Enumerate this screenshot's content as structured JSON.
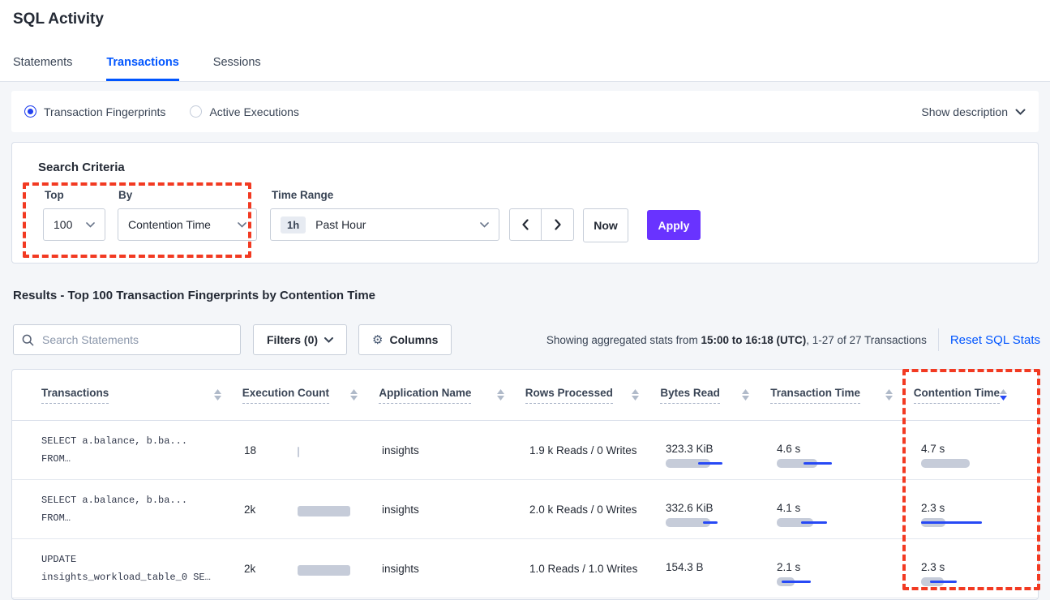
{
  "page": {
    "title": "SQL Activity",
    "show_description": "Show description"
  },
  "tabs": [
    {
      "label": "Statements"
    },
    {
      "label": "Transactions"
    },
    {
      "label": "Sessions"
    }
  ],
  "view_options": [
    {
      "label": "Transaction Fingerprints"
    },
    {
      "label": "Active Executions"
    }
  ],
  "search_criteria": {
    "heading": "Search Criteria",
    "top_label": "Top",
    "top_value": "100",
    "by_label": "By",
    "by_value": "Contention Time",
    "time_range_label": "Time Range",
    "time_range_badge": "1h",
    "time_range_value": "Past Hour",
    "now_label": "Now",
    "apply_label": "Apply"
  },
  "results": {
    "heading": "Results - Top 100 Transaction Fingerprints by Contention Time",
    "search_placeholder": "Search Statements",
    "filters_label": "Filters (0)",
    "columns_label": "Columns",
    "stats_prefix": "Showing aggregated stats from ",
    "stats_bold": "15:00 to 16:18 (UTC)",
    "stats_suffix": ", 1-27 of 27 Transactions",
    "reset_label": "Reset SQL Stats"
  },
  "table": {
    "columns": [
      "Transactions",
      "Execution Count",
      "Application Name",
      "Rows Processed",
      "Bytes Read",
      "Transaction Time",
      "Contention Time"
    ],
    "sorted_column": "Contention Time",
    "sort_direction": "desc",
    "rows": [
      {
        "statement_line1": "SELECT a.balance, b.ba...",
        "statement_line2": "FROM…",
        "execution_count": "18",
        "application_name": "insights",
        "rows_processed": "1.9 k Reads / 0 Writes",
        "bytes_read": "323.3 KiB",
        "transaction_time": "4.6 s",
        "contention_time": "4.7 s",
        "bars": {
          "execution": {
            "gray": 2
          },
          "bytes": {
            "gray": 55,
            "blue": [
              40,
              70
            ]
          },
          "transaction": {
            "gray": 50,
            "blue": [
              33,
              68
            ]
          },
          "contention": {
            "gray": 60
          }
        }
      },
      {
        "statement_line1": "SELECT a.balance, b.ba...",
        "statement_line2": "FROM…",
        "execution_count": "2k",
        "application_name": "insights",
        "rows_processed": "2.0 k Reads / 0 Writes",
        "bytes_read": "332.6 KiB",
        "transaction_time": "4.1 s",
        "contention_time": "2.3 s",
        "bars": {
          "execution": {
            "gray": 65
          },
          "bytes": {
            "gray": 55,
            "blue": [
              46,
              64
            ]
          },
          "transaction": {
            "gray": 45,
            "blue": [
              30,
              62
            ]
          },
          "contention": {
            "gray": 30,
            "blue": [
              0,
              75
            ]
          }
        }
      },
      {
        "statement_line1": "UPDATE",
        "statement_line2": "insights_workload_table_0 SE…",
        "execution_count": "2k",
        "application_name": "insights",
        "rows_processed": "1.0 Reads / 1.0 Writes",
        "bytes_read": "154.3 B",
        "transaction_time": "2.1 s",
        "contention_time": "2.3 s",
        "bars": {
          "execution": {
            "gray": 65
          },
          "bytes": null,
          "transaction": {
            "gray": 22,
            "blue": [
              6,
              42
            ]
          },
          "contention": {
            "gray": 28,
            "blue": [
              11,
              44
            ]
          }
        }
      }
    ]
  },
  "colors": {
    "accent_blue": "#0055ff",
    "apply_purple": "#6933ff",
    "bar_gray": "#c6ccd9",
    "bar_blue": "#2749f5",
    "highlight_red": "#f23a22"
  }
}
